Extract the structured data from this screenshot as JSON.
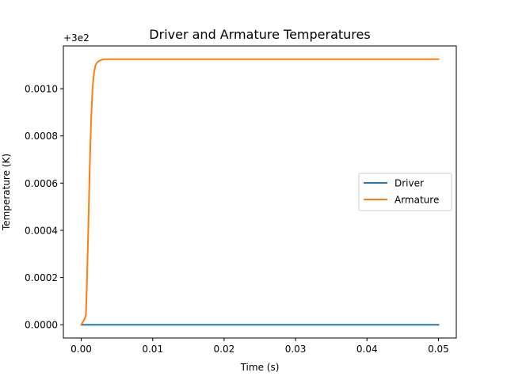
{
  "chart_data": {
    "type": "line",
    "title": "Driver and Armature Temperatures",
    "xlabel": "Time (s)",
    "ylabel": "Temperature (K)",
    "offset_label": "+3e2",
    "xlim": [
      -0.0025,
      0.0525
    ],
    "ylim": [
      -5.63e-05,
      0.0011813
    ],
    "x_ticks": [
      0.0,
      0.01,
      0.02,
      0.03,
      0.04,
      0.05
    ],
    "x_tick_labels": [
      "0.00",
      "0.01",
      "0.02",
      "0.03",
      "0.04",
      "0.05"
    ],
    "y_ticks": [
      0.0,
      0.0002,
      0.0004,
      0.0006,
      0.0008,
      0.001
    ],
    "y_tick_labels": [
      "0.0000",
      "0.0002",
      "0.0004",
      "0.0006",
      "0.0008",
      "0.0010"
    ],
    "grid": false,
    "legend_position": "center-right",
    "series": [
      {
        "name": "Driver",
        "color": "#1f77b4",
        "x": [
          0.0,
          0.05
        ],
        "y": [
          0.0,
          0.0
        ]
      },
      {
        "name": "Armature",
        "color": "#ff7f0e",
        "x": [
          0.0,
          0.0004,
          0.00065,
          0.0008,
          0.001,
          0.0012,
          0.0014,
          0.0016,
          0.0018,
          0.002,
          0.0022,
          0.0025,
          0.003,
          0.0035,
          0.004,
          0.005,
          0.05
        ],
        "y": [
          0.0,
          2e-05,
          4e-05,
          0.00018,
          0.00042,
          0.00068,
          0.00088,
          0.00101,
          0.00107,
          0.0011,
          0.00111,
          0.001118,
          0.001124,
          0.001125,
          0.001125,
          0.001125,
          0.001125
        ]
      }
    ]
  }
}
